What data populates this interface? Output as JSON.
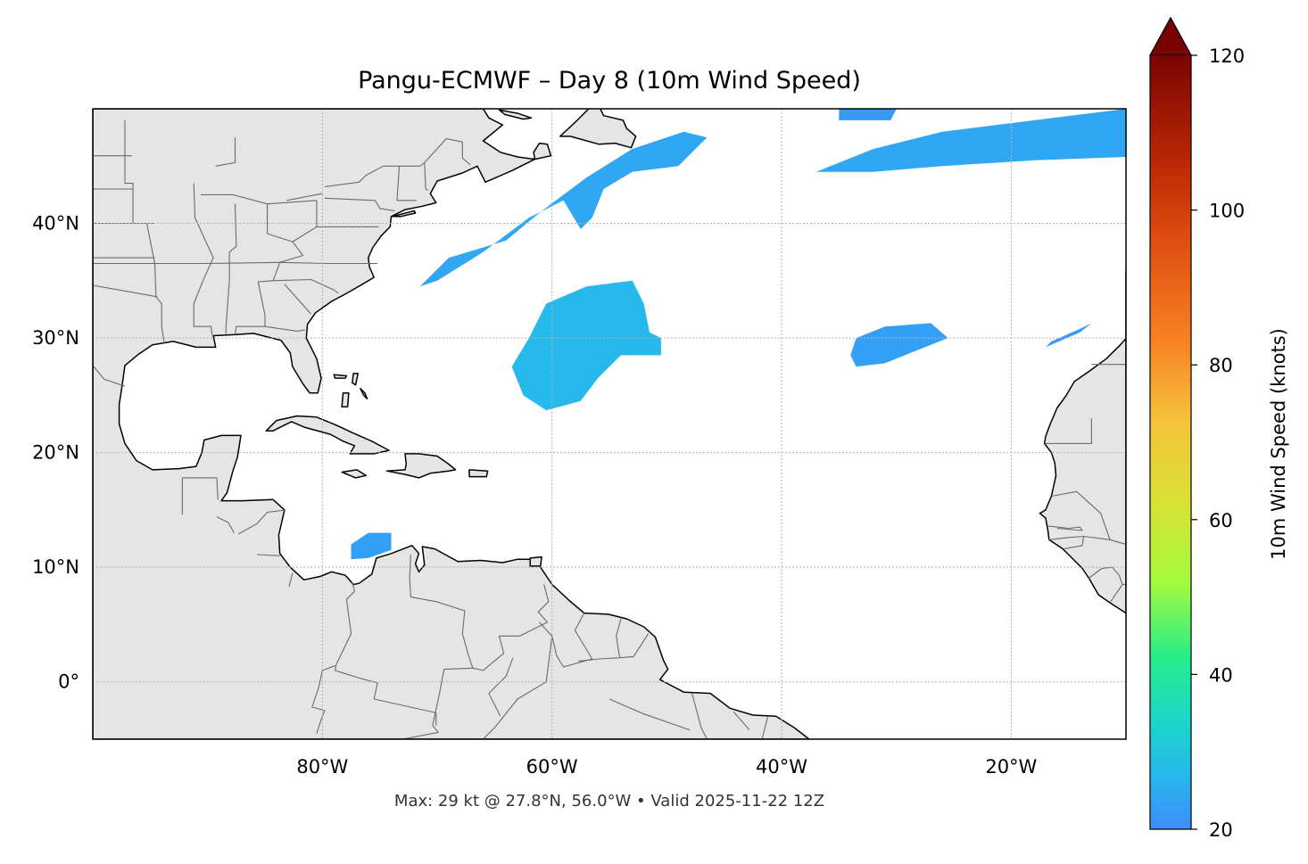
{
  "title": "Pangu-ECMWF – Day 8 (10m Wind Speed)",
  "footer": "Max: 29 kt @ 27.8°N, 56.0°W • Valid 2025-11-22 12Z",
  "map": {
    "extent_lon": [
      -100,
      -10
    ],
    "extent_lat": [
      -5,
      50
    ],
    "land_color": "#e5e5e5",
    "ocean_color": "#ffffff",
    "coast_color": "#000000",
    "border_color": "#6b6b6b",
    "gridlines": true,
    "lon_ticks": [
      {
        "lon": -80,
        "label": "80°W"
      },
      {
        "lon": -60,
        "label": "60°W"
      },
      {
        "lon": -40,
        "label": "40°W"
      },
      {
        "lon": -20,
        "label": "20°W"
      }
    ],
    "lat_ticks": [
      {
        "lat": 0,
        "label": "0°"
      },
      {
        "lat": 10,
        "label": "10°N"
      },
      {
        "lat": 20,
        "label": "20°N"
      },
      {
        "lat": 30,
        "label": "30°N"
      },
      {
        "lat": 40,
        "label": "40°N"
      }
    ]
  },
  "colorbar": {
    "label": "10m Wind Speed (knots)",
    "min": 20,
    "max": 120,
    "extend": "max",
    "ticks": [
      {
        "value": 20,
        "label": "20"
      },
      {
        "value": 40,
        "label": "40"
      },
      {
        "value": 60,
        "label": "60"
      },
      {
        "value": 80,
        "label": "80"
      },
      {
        "value": 100,
        "label": "100"
      },
      {
        "value": 120,
        "label": "120"
      }
    ],
    "stops": [
      {
        "v": 20,
        "color": "#3e8efb"
      },
      {
        "v": 27,
        "color": "#27b8ec"
      },
      {
        "v": 34,
        "color": "#1cd7c9"
      },
      {
        "v": 42,
        "color": "#25ed8c"
      },
      {
        "v": 52,
        "color": "#a4fa3c"
      },
      {
        "v": 62,
        "color": "#d8e236"
      },
      {
        "v": 73,
        "color": "#f6c23a"
      },
      {
        "v": 83,
        "color": "#f98224"
      },
      {
        "v": 97,
        "color": "#dc4a0f"
      },
      {
        "v": 107,
        "color": "#b72604"
      },
      {
        "v": 120,
        "color": "#7a0403"
      }
    ]
  },
  "wind_areas": [
    {
      "name": "Labrador Sea / Newfoundland band",
      "level": 24,
      "points": [
        [
          -64,
          38.5
        ],
        [
          -61,
          41
        ],
        [
          -57,
          44
        ],
        [
          -53,
          46.5
        ],
        [
          -48.5,
          48
        ],
        [
          -46.5,
          47.5
        ],
        [
          -49,
          45
        ],
        [
          -53,
          44.5
        ],
        [
          -55.5,
          43
        ],
        [
          -56.5,
          40.5
        ],
        [
          -57.5,
          39.5
        ],
        [
          -59,
          42
        ],
        [
          -62,
          40.5
        ],
        [
          -66,
          37.5
        ],
        [
          -70,
          35
        ],
        [
          -71.5,
          34.5
        ],
        [
          -69,
          37
        ]
      ]
    },
    {
      "name": "Central Atlantic high-wind area (max)",
      "level": 27,
      "points": [
        [
          -62.5,
          25
        ],
        [
          -63.5,
          27.5
        ],
        [
          -62,
          30
        ],
        [
          -60.5,
          33
        ],
        [
          -57,
          34.5
        ],
        [
          -53,
          35
        ],
        [
          -52,
          33
        ],
        [
          -51.5,
          30.5
        ],
        [
          -50.5,
          30
        ],
        [
          -50.5,
          28.5
        ],
        [
          -54,
          28.5
        ],
        [
          -56,
          26.5
        ],
        [
          -57.5,
          24.5
        ],
        [
          -60.5,
          23.7
        ]
      ]
    },
    {
      "name": "Eastern Atlantic 30N area",
      "level": 23,
      "points": [
        [
          -34,
          28.5
        ],
        [
          -33.5,
          30
        ],
        [
          -31,
          31
        ],
        [
          -27,
          31.3
        ],
        [
          -25.5,
          30
        ],
        [
          -28,
          29
        ],
        [
          -31,
          27.8
        ],
        [
          -33.5,
          27.5
        ]
      ]
    },
    {
      "name": "Northeast Atlantic band",
      "level": 24,
      "points": [
        [
          -37,
          44.5
        ],
        [
          -32,
          46.5
        ],
        [
          -26,
          48
        ],
        [
          -18,
          49
        ],
        [
          -10,
          50
        ],
        [
          -10,
          45.8
        ],
        [
          -18,
          45.5
        ],
        [
          -26,
          45
        ],
        [
          -32,
          44.5
        ]
      ]
    },
    {
      "name": "North edge patch",
      "level": 22,
      "points": [
        [
          -35,
          50
        ],
        [
          -30,
          50
        ],
        [
          -30.5,
          49
        ],
        [
          -35,
          49
        ]
      ]
    },
    {
      "name": "Small east patch",
      "level": 22,
      "points": [
        [
          -17,
          29.2
        ],
        [
          -14,
          30.5
        ],
        [
          -13,
          31.3
        ],
        [
          -14,
          30.8
        ],
        [
          -16.5,
          29.7
        ]
      ]
    },
    {
      "name": "Caribbean patch",
      "level": 23,
      "points": [
        [
          -77.5,
          10.7
        ],
        [
          -77.5,
          12
        ],
        [
          -76,
          13
        ],
        [
          -74,
          13
        ],
        [
          -74,
          11.5
        ],
        [
          -76,
          10.8
        ]
      ]
    }
  ]
}
